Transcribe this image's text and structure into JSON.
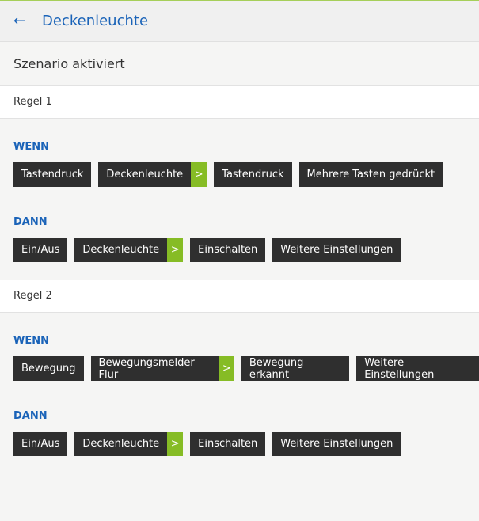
{
  "header": {
    "title": "Deckenleuchte",
    "back_icon": "arrow-left-icon"
  },
  "status": "Szenario aktiviert",
  "colors": {
    "accent": "#1a63b8",
    "chip": "#2f2f2f",
    "arrow": "#86bc25"
  },
  "rules": [
    {
      "name": "Regel 1",
      "when_label": "WENN",
      "when": [
        {
          "label": "Tastendruck"
        },
        {
          "label": "Deckenleuchte",
          "arrow": true
        },
        {
          "label": "Tastendruck"
        },
        {
          "label": "Mehrere Tasten gedrückt"
        }
      ],
      "then_label": "DANN",
      "then": [
        {
          "label": "Ein/Aus"
        },
        {
          "label": "Deckenleuchte",
          "arrow": true
        },
        {
          "label": "Einschalten"
        },
        {
          "label": "Weitere Einstellungen"
        }
      ]
    },
    {
      "name": "Regel 2",
      "when_label": "WENN",
      "when": [
        {
          "label": "Bewegung"
        },
        {
          "label": "Bewegungsmelder Flur",
          "arrow": true
        },
        {
          "label": "Bewegung erkannt"
        },
        {
          "label": "Weitere Einstellungen"
        }
      ],
      "then_label": "DANN",
      "then": [
        {
          "label": "Ein/Aus"
        },
        {
          "label": "Deckenleuchte",
          "arrow": true
        },
        {
          "label": "Einschalten"
        },
        {
          "label": "Weitere Einstellungen"
        }
      ]
    }
  ]
}
